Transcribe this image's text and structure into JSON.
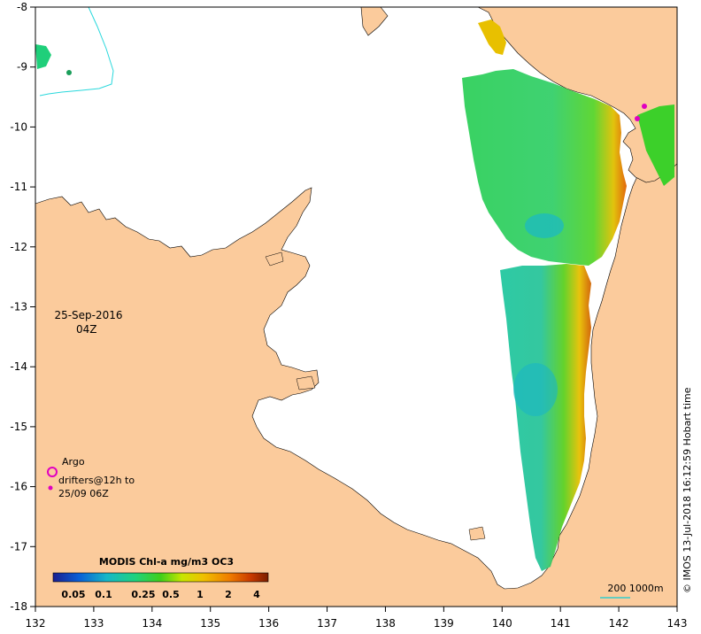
{
  "map": {
    "lon_ticks": [
      "132",
      "133",
      "134",
      "135",
      "136",
      "137",
      "138",
      "139",
      "140",
      "141",
      "142",
      "143"
    ],
    "lat_ticks": [
      "-8",
      "-9",
      "-10",
      "-11",
      "-12",
      "-13",
      "-14",
      "-15",
      "-16",
      "-17",
      "-18"
    ],
    "lon_range": [
      132,
      143
    ],
    "lat_range": [
      -18,
      -8
    ]
  },
  "date": {
    "line1": "25-Sep-2016",
    "line2": "04Z"
  },
  "legend": {
    "argo_label": "Argo",
    "drifter_line1": "drifters@12h to",
    "drifter_line2": "25/09 06Z",
    "argo_color": "#e000c0"
  },
  "colorbar": {
    "title": "MODIS Chl-a mg/m3 OC3",
    "ticks": [
      "0.05",
      "0.1",
      "0.25",
      "0.5",
      "1",
      "2",
      "4"
    ],
    "colors": [
      "#1b1f8f",
      "#0a5fd6",
      "#16b7c8",
      "#1fd27f",
      "#3fcf1a",
      "#c8e600",
      "#f0c000",
      "#f07d00",
      "#c83a00",
      "#7a1e00"
    ]
  },
  "scale": {
    "text": "200  1000m",
    "color": "#33cccc"
  },
  "credit": "© IMOS 13-Jul-2018 16:12:59 Hobart time",
  "colors": {
    "land": "#fbcb9c",
    "ocean": "#ffffff",
    "contour": "#29d8dc"
  }
}
